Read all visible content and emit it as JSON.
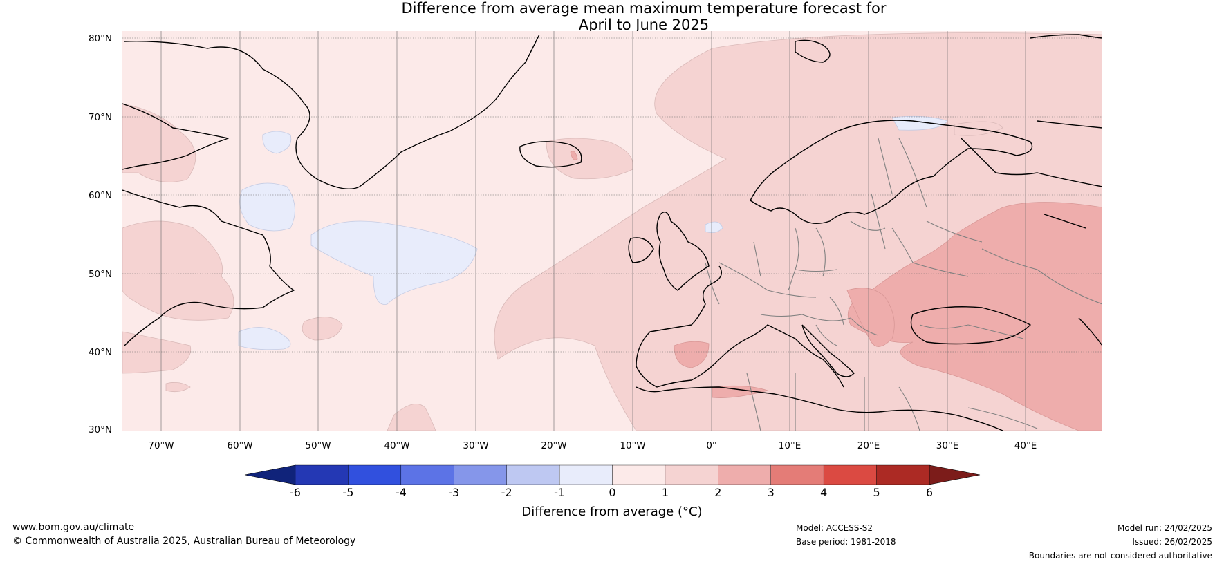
{
  "title": {
    "line1": "Difference from average mean maximum temperature forecast for",
    "line2": "April to June 2025"
  },
  "axes": {
    "lat_labels": [
      "80°N",
      "70°N",
      "60°N",
      "50°N",
      "40°N",
      "30°N"
    ],
    "lon_labels": [
      "70°W",
      "60°W",
      "50°W",
      "40°W",
      "30°W",
      "20°W",
      "10°W",
      "0°",
      "10°E",
      "20°E",
      "30°E",
      "40°E"
    ]
  },
  "colorbar": {
    "ticks": [
      "-6",
      "-5",
      "-4",
      "-3",
      "-2",
      "-1",
      "0",
      "1",
      "2",
      "3",
      "4",
      "5",
      "6"
    ],
    "colors": [
      "#10237a",
      "#2438b4",
      "#3150de",
      "#5c73e6",
      "#8596ea",
      "#bec8f2",
      "#e8ecfb",
      "#fceae9",
      "#f5d3d2",
      "#eeadac",
      "#e47c77",
      "#db4a42",
      "#ac2a24",
      "#7c1c1a"
    ],
    "label": "Difference from average (°C)"
  },
  "map_fill_colors": {
    "base": "#fceae9",
    "cool": "#e8ecfb",
    "warm1": "#f5d3d2",
    "warm2": "#eeadac",
    "coast": "#000000",
    "border": "#808080"
  },
  "footer": {
    "website": "www.bom.gov.au/climate",
    "copyright": "© Commonwealth of Australia 2025, Australian Bureau of Meteorology",
    "model": "Model: ACCESS-S2",
    "base_period": "Base period: 1981-2018",
    "model_run": "Model run: 24/02/2025",
    "issued": "Issued: 26/02/2025",
    "disclaimer": "Boundaries are not considered authoritative"
  }
}
